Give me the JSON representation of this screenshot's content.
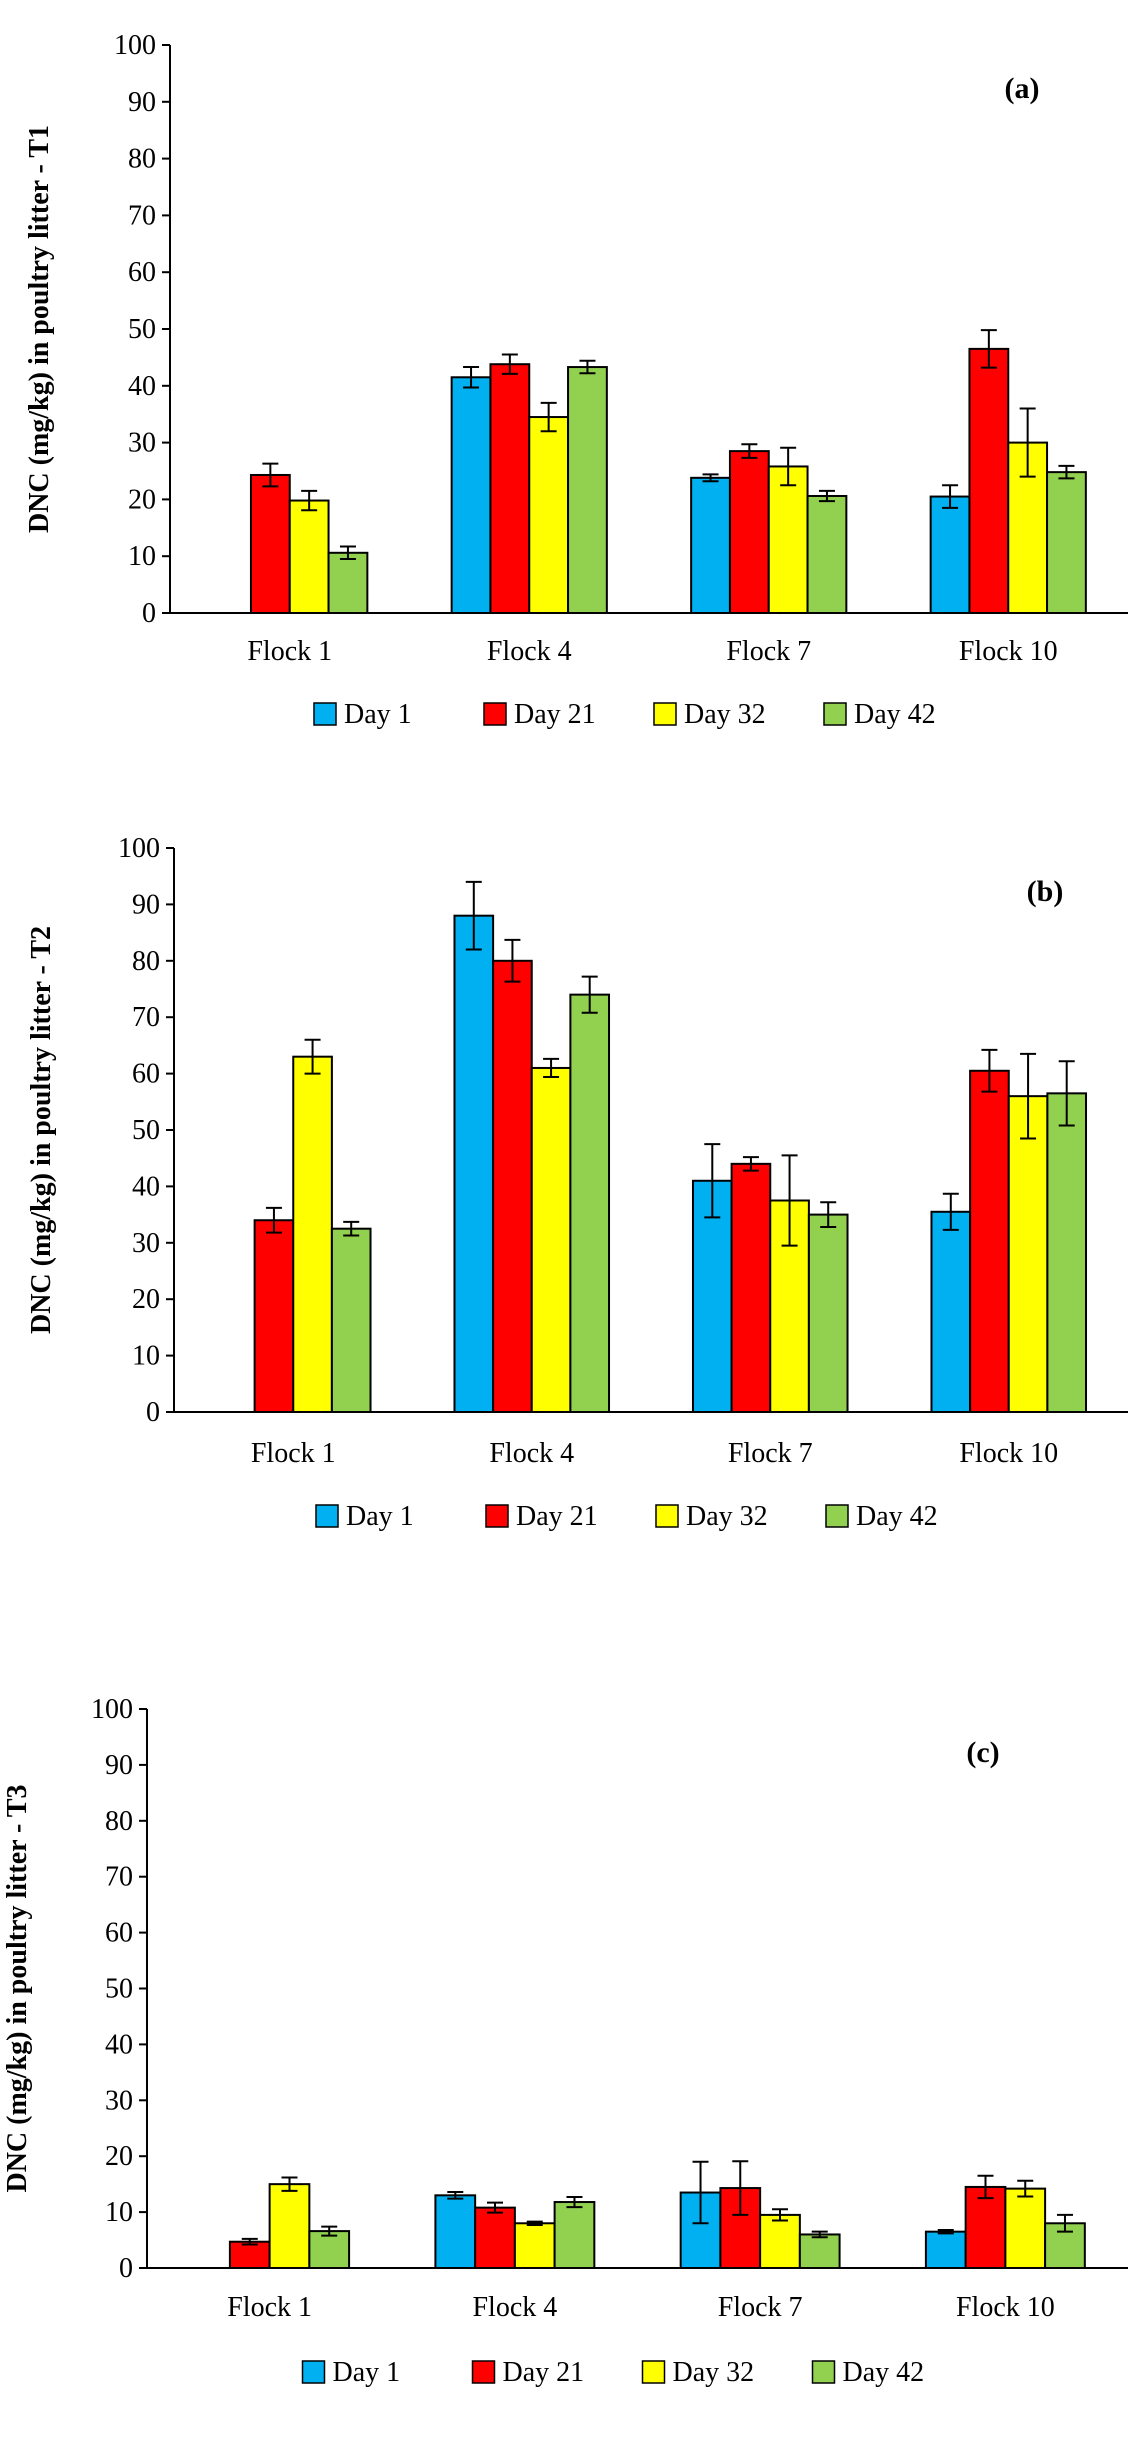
{
  "palette": {
    "Day 1": "#00B0F0",
    "Day 21": "#FF0000",
    "Day 32": "#FFFF00",
    "Day 42": "#92D050"
  },
  "chart_data": [
    {
      "type": "bar",
      "panel_label": "(a)",
      "ylabel": "DNC (mg/kg) in poultry litter - T1",
      "ylim": [
        0,
        100
      ],
      "yticks": [
        0,
        10,
        20,
        30,
        40,
        50,
        60,
        70,
        80,
        90,
        100
      ],
      "categories": [
        "Flock 1",
        "Flock 4",
        "Flock 7",
        "Flock 10"
      ],
      "legend_position": "bottom",
      "grid": false,
      "series": [
        {
          "name": "Day 1",
          "values": [
            0,
            41.5,
            23.8,
            20.5
          ],
          "errors": [
            0,
            1.8,
            0.6,
            2.0
          ]
        },
        {
          "name": "Day 21",
          "values": [
            24.3,
            43.8,
            28.5,
            46.5
          ],
          "errors": [
            2.0,
            1.7,
            1.2,
            3.3
          ]
        },
        {
          "name": "Day 32",
          "values": [
            19.8,
            34.5,
            25.8,
            30.0
          ],
          "errors": [
            1.7,
            2.5,
            3.3,
            6.0
          ]
        },
        {
          "name": "Day 42",
          "values": [
            10.6,
            43.3,
            20.6,
            24.8
          ],
          "errors": [
            1.1,
            1.1,
            0.9,
            1.1
          ]
        }
      ]
    },
    {
      "type": "bar",
      "panel_label": "(b)",
      "ylabel": "DNC (mg/kg) in poultry litter - T2",
      "ylim": [
        0,
        100
      ],
      "yticks": [
        0,
        10,
        20,
        30,
        40,
        50,
        60,
        70,
        80,
        90,
        100
      ],
      "categories": [
        "Flock 1",
        "Flock 4",
        "Flock 7",
        "Flock 10"
      ],
      "legend_position": "bottom",
      "grid": false,
      "series": [
        {
          "name": "Day 1",
          "values": [
            0,
            88.0,
            41.0,
            35.5
          ],
          "errors": [
            0,
            6.0,
            6.5,
            3.2
          ]
        },
        {
          "name": "Day 21",
          "values": [
            34.0,
            80.0,
            44.0,
            60.5
          ],
          "errors": [
            2.2,
            3.7,
            1.2,
            3.7
          ]
        },
        {
          "name": "Day 32",
          "values": [
            63.0,
            61.0,
            37.5,
            56.0
          ],
          "errors": [
            3.0,
            1.6,
            8.0,
            7.5
          ]
        },
        {
          "name": "Day 42",
          "values": [
            32.5,
            74.0,
            35.0,
            56.5
          ],
          "errors": [
            1.2,
            3.2,
            2.2,
            5.7
          ]
        }
      ]
    },
    {
      "type": "bar",
      "panel_label": "(c)",
      "ylabel": "DNC (mg/kg) in poultry litter - T3",
      "ylim": [
        0,
        100
      ],
      "yticks": [
        0,
        10,
        20,
        30,
        40,
        50,
        60,
        70,
        80,
        90,
        100
      ],
      "categories": [
        "Flock 1",
        "Flock 4",
        "Flock 7",
        "Flock 10"
      ],
      "legend_position": "bottom",
      "grid": false,
      "series": [
        {
          "name": "Day 1",
          "values": [
            0,
            13.0,
            13.5,
            6.5
          ],
          "errors": [
            0,
            0.6,
            5.5,
            0.3
          ]
        },
        {
          "name": "Day 21",
          "values": [
            4.7,
            10.8,
            14.3,
            14.5
          ],
          "errors": [
            0.5,
            0.9,
            4.8,
            2.0
          ]
        },
        {
          "name": "Day 32",
          "values": [
            15.0,
            8.0,
            9.5,
            14.2
          ],
          "errors": [
            1.2,
            0.3,
            1.0,
            1.4
          ]
        },
        {
          "name": "Day 42",
          "values": [
            6.6,
            11.8,
            6.0,
            8.0
          ],
          "errors": [
            0.8,
            0.9,
            0.5,
            1.5
          ]
        }
      ]
    }
  ]
}
